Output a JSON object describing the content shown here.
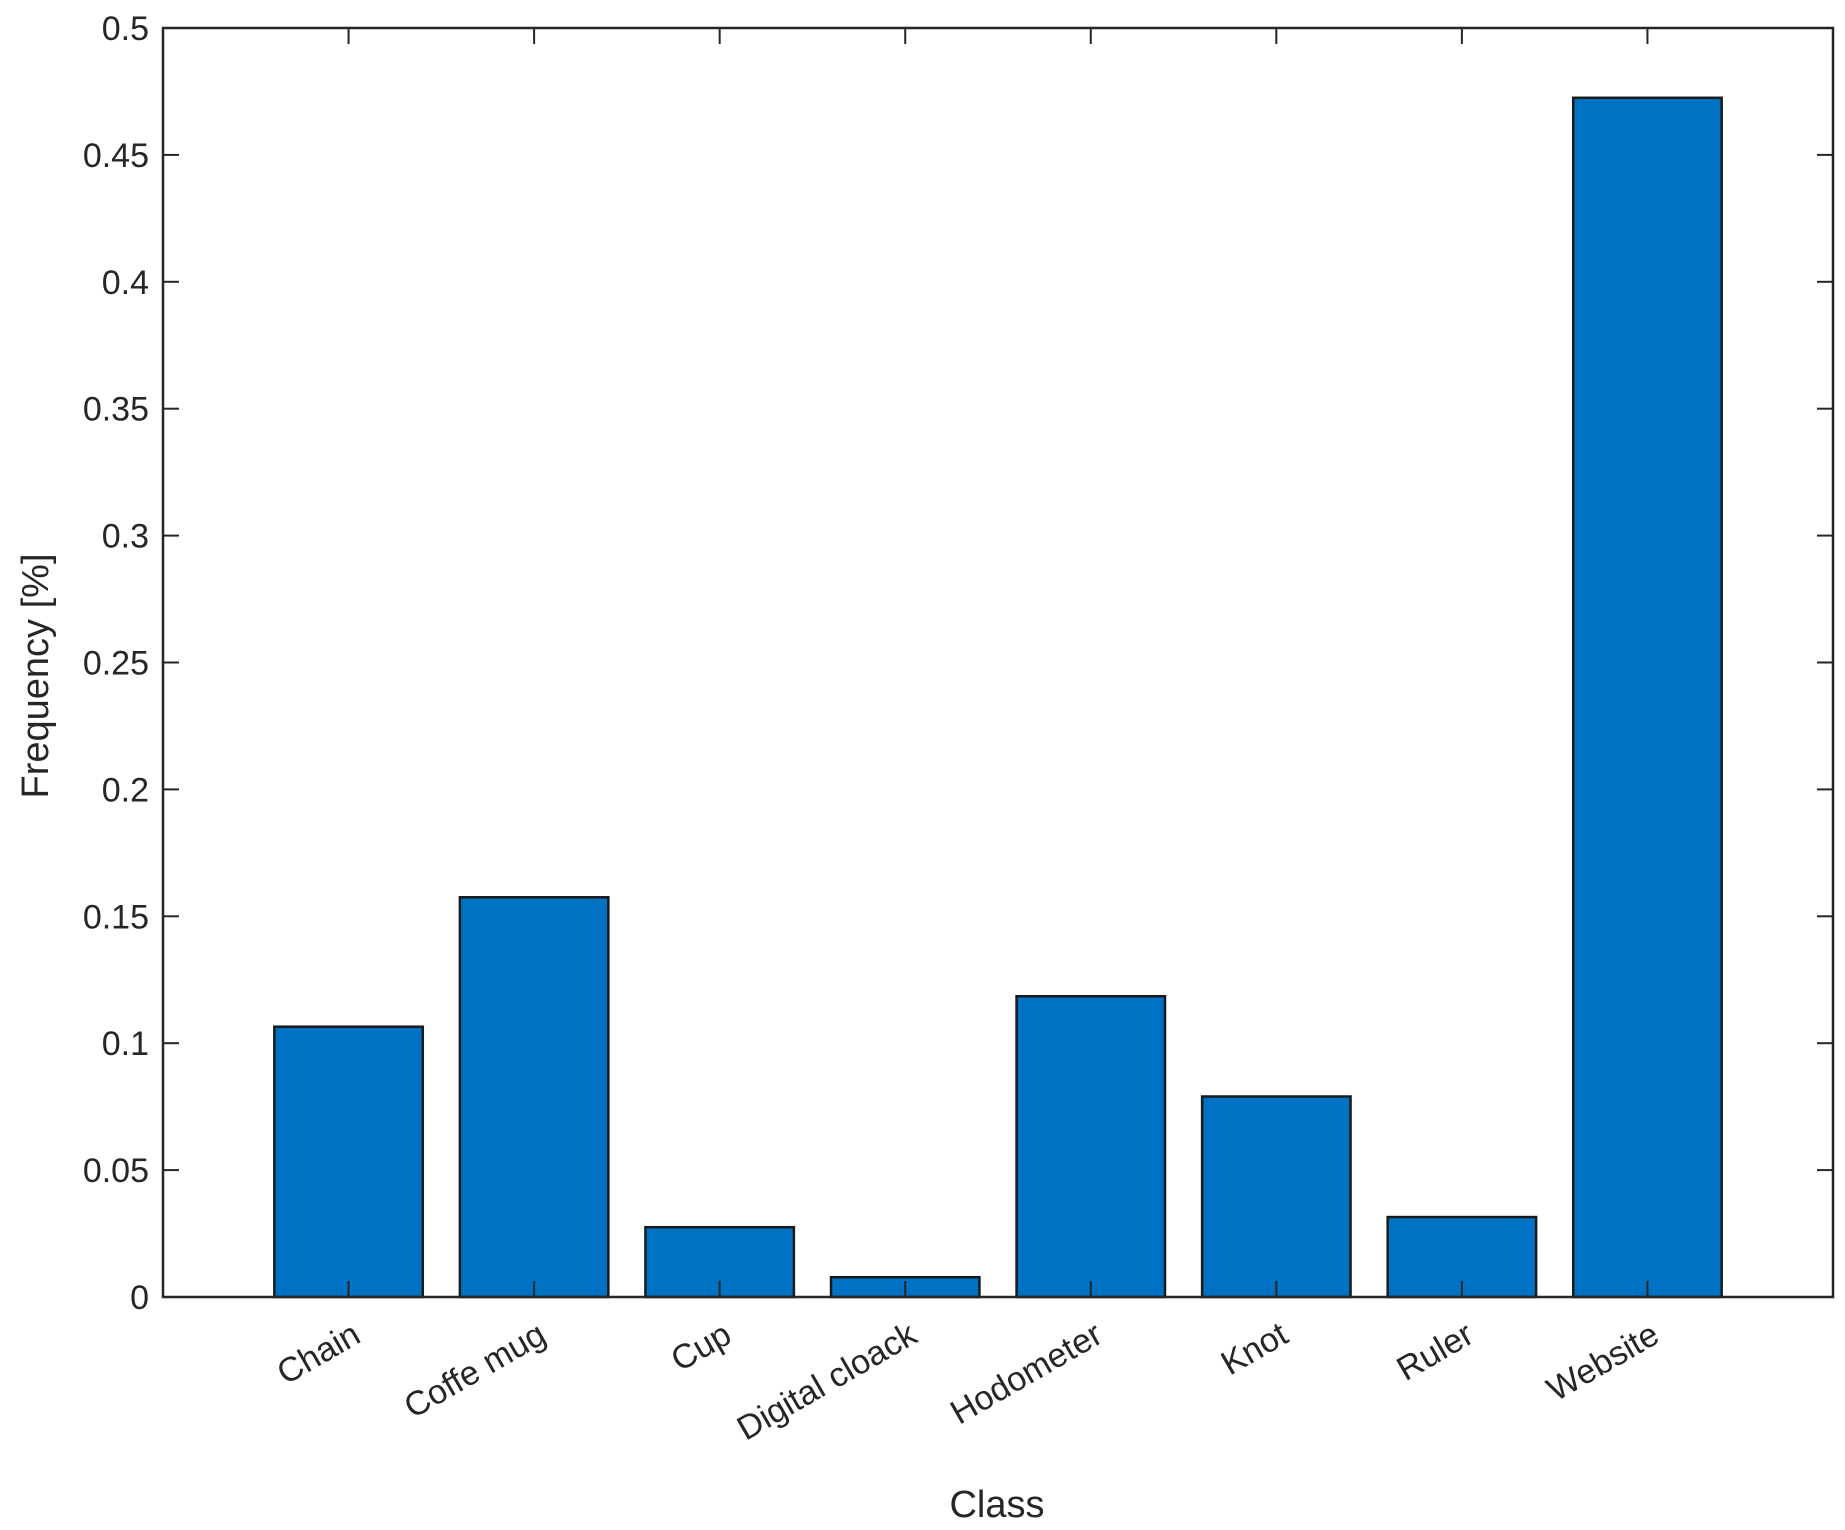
{
  "chart_data": {
    "type": "bar",
    "title": "",
    "xlabel": "Class",
    "ylabel": "Frequency [%]",
    "categories": [
      "Chain",
      "Coffe mug",
      "Cup",
      "Digital cloack",
      "Hodometer",
      "Knot",
      "Ruler",
      "Website"
    ],
    "values": [
      0.1065,
      0.1575,
      0.0275,
      0.0078,
      0.1185,
      0.079,
      0.0315,
      0.4725
    ],
    "ylim": [
      0,
      0.5
    ],
    "yticks": [
      0,
      0.05,
      0.1,
      0.15,
      0.2,
      0.25,
      0.3,
      0.35,
      0.4,
      0.45,
      0.5
    ],
    "ytick_labels": [
      "0",
      "0.05",
      "0.1",
      "0.15",
      "0.2",
      "0.25",
      "0.3",
      "0.35",
      "0.4",
      "0.45",
      "0.5"
    ],
    "grid": false,
    "legend": "none",
    "colors": {
      "bar_fill": "#0072C3",
      "bar_edge": "#1a1a1a",
      "axis": "#262626",
      "text": "#262626"
    }
  }
}
